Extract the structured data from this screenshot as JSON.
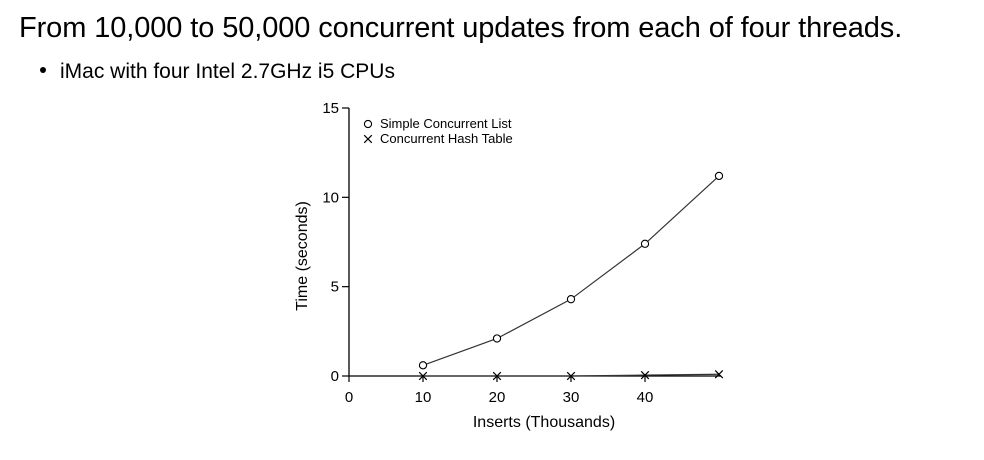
{
  "slide": {
    "title": "From 10,000 to 50,000 concurrent updates from each of four threads.",
    "bullet": "iMac with four Intel 2.7GHz i5 CPUs"
  },
  "chart_data": {
    "type": "line",
    "xlabel": "Inserts (Thousands)",
    "ylabel": "Time (seconds)",
    "xlim": [
      0,
      50
    ],
    "ylim": [
      0,
      15
    ],
    "xticks": [
      0,
      10,
      20,
      30,
      40
    ],
    "yticks": [
      0,
      5,
      10,
      15
    ],
    "legend_position": "top-left",
    "grid": false,
    "series": [
      {
        "name": "Simple Concurrent List",
        "marker": "circle",
        "x": [
          10,
          20,
          30,
          40,
          50
        ],
        "y": [
          0.6,
          2.1,
          4.3,
          7.4,
          11.2
        ]
      },
      {
        "name": "Concurrent Hash Table",
        "marker": "x",
        "x": [
          10,
          20,
          30,
          40,
          50
        ],
        "y": [
          0.0,
          0.0,
          0.0,
          0.05,
          0.1
        ]
      }
    ]
  }
}
